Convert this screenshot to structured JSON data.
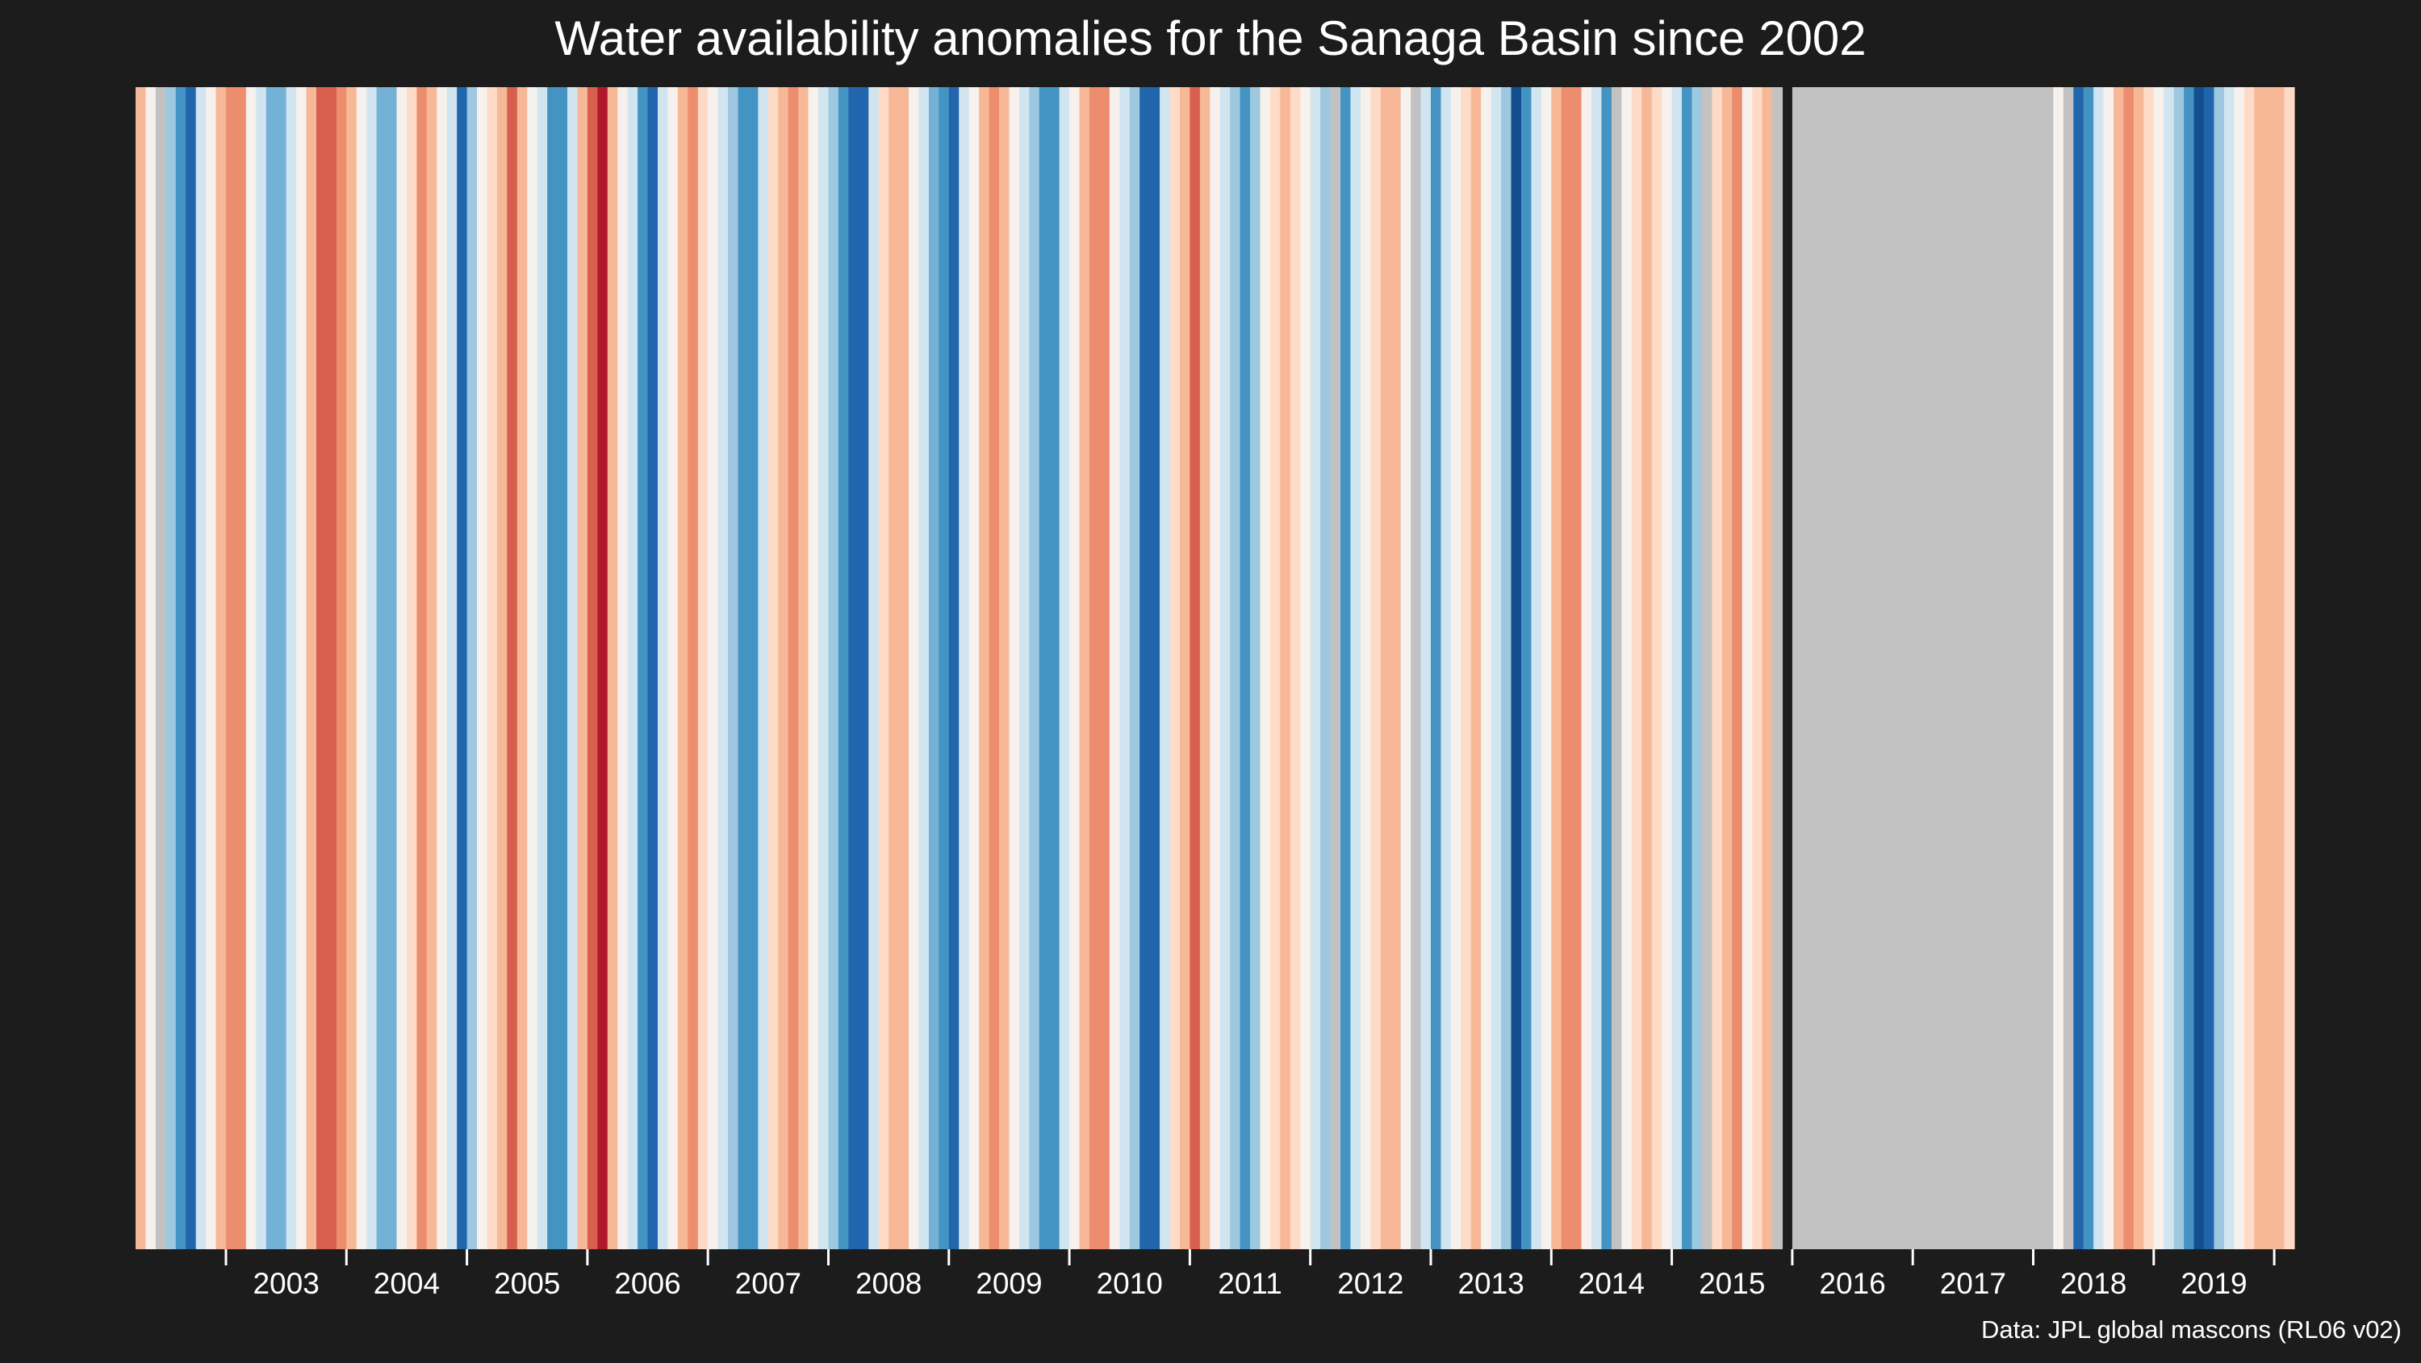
{
  "chart_data": {
    "type": "heatmap",
    "title": "Water availability anomalies for the Sanaga Basin since 2002",
    "caption": "Data: JPL global mascons (RL06 v02)",
    "xlabel": "",
    "ylabel": "",
    "x_start": "2002-04",
    "x_end": "2020-02",
    "resolution": "monthly",
    "value_scale": "anomaly level: -4 (strong deficit, dark red) to +4 (strong surplus, dark blue); null = missing data (grey)",
    "missing_color": "#c2c2c2",
    "palette": {
      "-4": "#b2182b",
      "-3": "#d6604d",
      "-2": "#ec8d6e",
      "-1": "#f7b898",
      "-0.5": "#fddbc7",
      "0": "#f7f1ee",
      "0.5": "#d1e5f0",
      "1": "#9dc8e0",
      "1.5": "#74b1d6",
      "2": "#4393c3",
      "3": "#2166ac",
      "4": "#134f8f"
    },
    "xticks": [
      "2003",
      "2004",
      "2005",
      "2006",
      "2007",
      "2008",
      "2009",
      "2010",
      "2011",
      "2012",
      "2013",
      "2014",
      "2015",
      "2016",
      "2017",
      "2018",
      "2019"
    ],
    "months": [
      {
        "t": "2002-04",
        "v": -1
      },
      {
        "t": "2002-05",
        "v": 0
      },
      {
        "t": "2002-06",
        "v": null
      },
      {
        "t": "2002-07",
        "v": 1
      },
      {
        "t": "2002-08",
        "v": 2
      },
      {
        "t": "2002-09",
        "v": 3
      },
      {
        "t": "2002-10",
        "v": 0.5
      },
      {
        "t": "2002-11",
        "v": 0
      },
      {
        "t": "2002-12",
        "v": -1
      },
      {
        "t": "2003-01",
        "v": -2
      },
      {
        "t": "2003-02",
        "v": -2
      },
      {
        "t": "2003-03",
        "v": 0
      },
      {
        "t": "2003-04",
        "v": 0.5
      },
      {
        "t": "2003-05",
        "v": 1.5
      },
      {
        "t": "2003-06",
        "v": 1.5
      },
      {
        "t": "2003-07",
        "v": 0.5
      },
      {
        "t": "2003-08",
        "v": 0
      },
      {
        "t": "2003-09",
        "v": -1
      },
      {
        "t": "2003-10",
        "v": -3
      },
      {
        "t": "2003-11",
        "v": -3
      },
      {
        "t": "2003-12",
        "v": -2
      },
      {
        "t": "2004-01",
        "v": -1
      },
      {
        "t": "2004-02",
        "v": 0
      },
      {
        "t": "2004-03",
        "v": 0.5
      },
      {
        "t": "2004-04",
        "v": 1.5
      },
      {
        "t": "2004-05",
        "v": 1.5
      },
      {
        "t": "2004-06",
        "v": 0
      },
      {
        "t": "2004-07",
        "v": -0.5
      },
      {
        "t": "2004-08",
        "v": -2
      },
      {
        "t": "2004-09",
        "v": -1
      },
      {
        "t": "2004-10",
        "v": 0
      },
      {
        "t": "2004-11",
        "v": 0.5
      },
      {
        "t": "2004-12",
        "v": 3
      },
      {
        "t": "2005-01",
        "v": 1
      },
      {
        "t": "2005-02",
        "v": 0
      },
      {
        "t": "2005-03",
        "v": -0.5
      },
      {
        "t": "2005-04",
        "v": -1
      },
      {
        "t": "2005-05",
        "v": -3
      },
      {
        "t": "2005-06",
        "v": -1
      },
      {
        "t": "2005-07",
        "v": 0
      },
      {
        "t": "2005-08",
        "v": 0.5
      },
      {
        "t": "2005-09",
        "v": 2
      },
      {
        "t": "2005-10",
        "v": 2
      },
      {
        "t": "2005-11",
        "v": 0.5
      },
      {
        "t": "2005-12",
        "v": -1
      },
      {
        "t": "2006-01",
        "v": -3
      },
      {
        "t": "2006-02",
        "v": -4
      },
      {
        "t": "2006-03",
        "v": -1
      },
      {
        "t": "2006-04",
        "v": 0
      },
      {
        "t": "2006-05",
        "v": 0.5
      },
      {
        "t": "2006-06",
        "v": 2
      },
      {
        "t": "2006-07",
        "v": 3
      },
      {
        "t": "2006-08",
        "v": 0.5
      },
      {
        "t": "2006-09",
        "v": 0
      },
      {
        "t": "2006-10",
        "v": -1
      },
      {
        "t": "2006-11",
        "v": -2
      },
      {
        "t": "2006-12",
        "v": -0.5
      },
      {
        "t": "2007-01",
        "v": 0
      },
      {
        "t": "2007-02",
        "v": 0.5
      },
      {
        "t": "2007-03",
        "v": 1
      },
      {
        "t": "2007-04",
        "v": 2
      },
      {
        "t": "2007-05",
        "v": 2
      },
      {
        "t": "2007-06",
        "v": 0.5
      },
      {
        "t": "2007-07",
        "v": -0.5
      },
      {
        "t": "2007-08",
        "v": -1
      },
      {
        "t": "2007-09",
        "v": -2
      },
      {
        "t": "2007-10",
        "v": -1
      },
      {
        "t": "2007-11",
        "v": 0
      },
      {
        "t": "2007-12",
        "v": 0.5
      },
      {
        "t": "2008-01",
        "v": 1
      },
      {
        "t": "2008-02",
        "v": 2
      },
      {
        "t": "2008-03",
        "v": 3
      },
      {
        "t": "2008-04",
        "v": 3
      },
      {
        "t": "2008-05",
        "v": 0.5
      },
      {
        "t": "2008-06",
        "v": -0.5
      },
      {
        "t": "2008-07",
        "v": -1
      },
      {
        "t": "2008-08",
        "v": -1
      },
      {
        "t": "2008-09",
        "v": 0
      },
      {
        "t": "2008-10",
        "v": 0.5
      },
      {
        "t": "2008-11",
        "v": 1.5
      },
      {
        "t": "2008-12",
        "v": 2
      },
      {
        "t": "2009-01",
        "v": 3
      },
      {
        "t": "2009-02",
        "v": 0.5
      },
      {
        "t": "2009-03",
        "v": 0
      },
      {
        "t": "2009-04",
        "v": -1
      },
      {
        "t": "2009-05",
        "v": -2
      },
      {
        "t": "2009-06",
        "v": -1
      },
      {
        "t": "2009-07",
        "v": 0
      },
      {
        "t": "2009-08",
        "v": 0.5
      },
      {
        "t": "2009-09",
        "v": 1
      },
      {
        "t": "2009-10",
        "v": 2
      },
      {
        "t": "2009-11",
        "v": 2
      },
      {
        "t": "2009-12",
        "v": 0.5
      },
      {
        "t": "2010-01",
        "v": 0
      },
      {
        "t": "2010-02",
        "v": -1
      },
      {
        "t": "2010-03",
        "v": -2
      },
      {
        "t": "2010-04",
        "v": -2
      },
      {
        "t": "2010-05",
        "v": 0
      },
      {
        "t": "2010-06",
        "v": 0.5
      },
      {
        "t": "2010-07",
        "v": 1
      },
      {
        "t": "2010-08",
        "v": 3
      },
      {
        "t": "2010-09",
        "v": 3
      },
      {
        "t": "2010-10",
        "v": 0.5
      },
      {
        "t": "2010-11",
        "v": -0.5
      },
      {
        "t": "2010-12",
        "v": -1
      },
      {
        "t": "2011-01",
        "v": -3
      },
      {
        "t": "2011-02",
        "v": -1
      },
      {
        "t": "2011-03",
        "v": 0
      },
      {
        "t": "2011-04",
        "v": 0.5
      },
      {
        "t": "2011-05",
        "v": 1
      },
      {
        "t": "2011-06",
        "v": 2
      },
      {
        "t": "2011-07",
        "v": 1
      },
      {
        "t": "2011-08",
        "v": 0
      },
      {
        "t": "2011-09",
        "v": -0.5
      },
      {
        "t": "2011-10",
        "v": -1
      },
      {
        "t": "2011-11",
        "v": -0.5
      },
      {
        "t": "2011-12",
        "v": 0
      },
      {
        "t": "2012-01",
        "v": 0.5
      },
      {
        "t": "2012-02",
        "v": 1
      },
      {
        "t": "2012-03",
        "v": null
      },
      {
        "t": "2012-04",
        "v": 2
      },
      {
        "t": "2012-05",
        "v": 0.5
      },
      {
        "t": "2012-06",
        "v": 0
      },
      {
        "t": "2012-07",
        "v": -0.5
      },
      {
        "t": "2012-08",
        "v": -1
      },
      {
        "t": "2012-09",
        "v": -1
      },
      {
        "t": "2012-10",
        "v": 0
      },
      {
        "t": "2012-11",
        "v": null
      },
      {
        "t": "2012-12",
        "v": 0.5
      },
      {
        "t": "2013-01",
        "v": 2
      },
      {
        "t": "2013-02",
        "v": 0.5
      },
      {
        "t": "2013-03",
        "v": 0
      },
      {
        "t": "2013-04",
        "v": -0.5
      },
      {
        "t": "2013-05",
        "v": -1
      },
      {
        "t": "2013-06",
        "v": 0
      },
      {
        "t": "2013-07",
        "v": 0.5
      },
      {
        "t": "2013-08",
        "v": 1
      },
      {
        "t": "2013-09",
        "v": 4
      },
      {
        "t": "2013-10",
        "v": 2
      },
      {
        "t": "2013-11",
        "v": 0.5
      },
      {
        "t": "2013-12",
        "v": 0
      },
      {
        "t": "2014-01",
        "v": -1
      },
      {
        "t": "2014-02",
        "v": -2
      },
      {
        "t": "2014-03",
        "v": -2
      },
      {
        "t": "2014-04",
        "v": 0
      },
      {
        "t": "2014-05",
        "v": 0.5
      },
      {
        "t": "2014-06",
        "v": 2
      },
      {
        "t": "2014-07",
        "v": null
      },
      {
        "t": "2014-08",
        "v": 0
      },
      {
        "t": "2014-09",
        "v": -0.5
      },
      {
        "t": "2014-10",
        "v": -1
      },
      {
        "t": "2014-11",
        "v": -0.5
      },
      {
        "t": "2014-12",
        "v": 0
      },
      {
        "t": "2015-01",
        "v": 0.5
      },
      {
        "t": "2015-02",
        "v": 2
      },
      {
        "t": "2015-03",
        "v": 1
      },
      {
        "t": "2015-04",
        "v": null
      },
      {
        "t": "2015-05",
        "v": -0.5
      },
      {
        "t": "2015-06",
        "v": -1
      },
      {
        "t": "2015-07",
        "v": -2
      },
      {
        "t": "2015-08",
        "v": 0
      },
      {
        "t": "2015-09",
        "v": -0.5
      },
      {
        "t": "2015-10",
        "v": -1
      },
      {
        "t": "2015-11",
        "v": null
      },
      {
        "t": "2016-01",
        "v": null
      },
      {
        "t": "2016-02",
        "v": null
      },
      {
        "t": "2016-03",
        "v": null
      },
      {
        "t": "2016-04",
        "v": null
      },
      {
        "t": "2016-05",
        "v": null
      },
      {
        "t": "2016-06",
        "v": null
      },
      {
        "t": "2016-07",
        "v": null
      },
      {
        "t": "2016-08",
        "v": null
      },
      {
        "t": "2016-09",
        "v": null
      },
      {
        "t": "2016-10",
        "v": null
      },
      {
        "t": "2016-11",
        "v": null
      },
      {
        "t": "2016-12",
        "v": null
      },
      {
        "t": "2017-01",
        "v": null
      },
      {
        "t": "2017-02",
        "v": null
      },
      {
        "t": "2017-03",
        "v": null
      },
      {
        "t": "2017-04",
        "v": null
      },
      {
        "t": "2017-05",
        "v": null
      },
      {
        "t": "2017-06",
        "v": null
      },
      {
        "t": "2017-07",
        "v": null
      },
      {
        "t": "2017-08",
        "v": null
      },
      {
        "t": "2017-09",
        "v": null
      },
      {
        "t": "2017-10",
        "v": null
      },
      {
        "t": "2017-11",
        "v": null
      },
      {
        "t": "2017-12",
        "v": null
      },
      {
        "t": "2018-01",
        "v": null
      },
      {
        "t": "2018-02",
        "v": null
      },
      {
        "t": "2018-03",
        "v": 0
      },
      {
        "t": "2018-04",
        "v": null
      },
      {
        "t": "2018-05",
        "v": 3
      },
      {
        "t": "2018-06",
        "v": 2
      },
      {
        "t": "2018-07",
        "v": 0.5
      },
      {
        "t": "2018-08",
        "v": 0
      },
      {
        "t": "2018-09",
        "v": -1
      },
      {
        "t": "2018-10",
        "v": -2
      },
      {
        "t": "2018-11",
        "v": -1
      },
      {
        "t": "2018-12",
        "v": -0.5
      },
      {
        "t": "2019-01",
        "v": 0
      },
      {
        "t": "2019-02",
        "v": 0.5
      },
      {
        "t": "2019-03",
        "v": 1
      },
      {
        "t": "2019-04",
        "v": 2
      },
      {
        "t": "2019-05",
        "v": 4
      },
      {
        "t": "2019-06",
        "v": 3
      },
      {
        "t": "2019-07",
        "v": 1
      },
      {
        "t": "2019-08",
        "v": 0.5
      },
      {
        "t": "2019-09",
        "v": 0
      },
      {
        "t": "2019-10",
        "v": -0.5
      },
      {
        "t": "2019-11",
        "v": -1
      },
      {
        "t": "2019-12",
        "v": -1
      },
      {
        "t": "2020-01",
        "v": -1
      },
      {
        "t": "2020-02",
        "v": -0.5
      }
    ]
  }
}
